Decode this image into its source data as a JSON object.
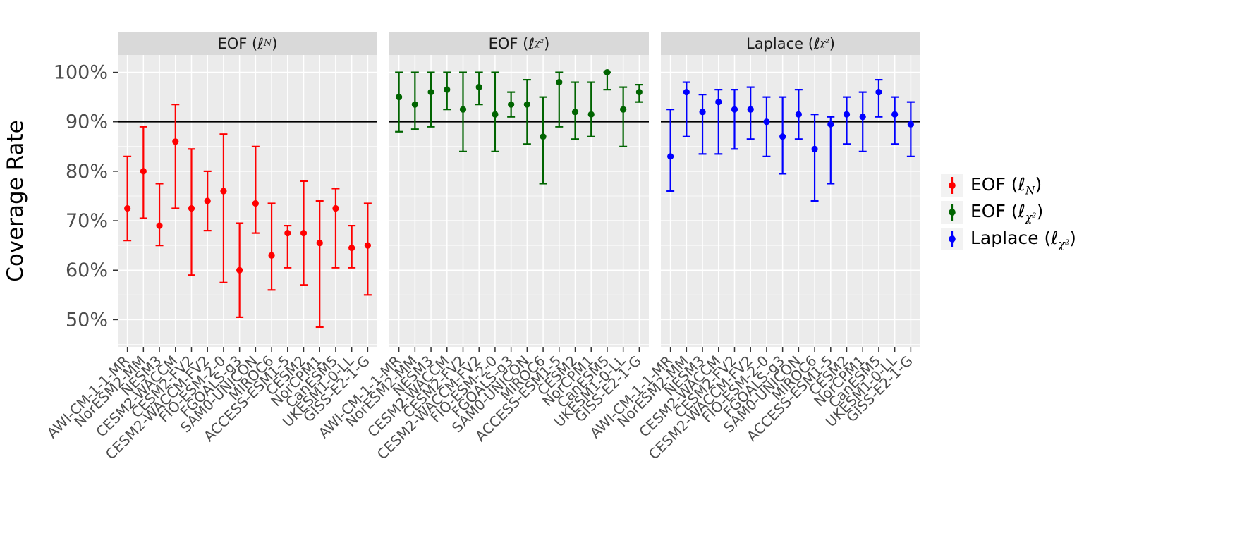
{
  "chart_data": {
    "type": "pointrange",
    "title": "",
    "xlabel": "",
    "ylabel": "Coverage Rate",
    "ylim": [
      44.5,
      103.5
    ],
    "y_ticks": [
      "50%",
      "60%",
      "70%",
      "80%",
      "90%",
      "100%"
    ],
    "y_tick_values": [
      50,
      60,
      70,
      80,
      90,
      100
    ],
    "y_minor_values": [
      45,
      55,
      65,
      75,
      85,
      95
    ],
    "reference_line": 90,
    "legend_position": "right",
    "grid": true,
    "categories": [
      "AWI-CM-1-1-MR",
      "NorESM2-MM",
      "NESM3",
      "CESM2-WACCM",
      "CESM2-FV2",
      "CESM2-WACCM-FV2",
      "FIO-ESM-2-0",
      "FGOALS-g3",
      "SAM0-UNICON",
      "MIROC6",
      "ACCESS-ESM1-5",
      "CESM2",
      "NorCPM1",
      "CanESM5",
      "UKESM1-0-LL",
      "GISS-E2-1-G"
    ],
    "panels": [
      {
        "label": {
          "prefix": "EOF (ℓ",
          "sub": "N",
          "suffix": ")"
        },
        "color": "#FF0000",
        "lo": [
          66,
          70.5,
          65,
          72.5,
          59,
          68,
          57.5,
          50.5,
          67.5,
          56,
          60.5,
          57,
          48.5,
          60.5,
          60.5,
          55
        ],
        "mid": [
          72.5,
          80,
          69,
          86,
          72.5,
          74,
          76,
          60,
          73.5,
          63,
          67.5,
          67.5,
          65.5,
          72.5,
          64.5,
          65
        ],
        "hi": [
          83,
          89,
          77.5,
          93.5,
          84.5,
          80,
          87.5,
          69.5,
          85,
          73.5,
          69,
          78,
          74,
          76.5,
          69,
          73.5
        ]
      },
      {
        "label": {
          "prefix": "EOF (ℓ",
          "sub": "χ²",
          "suffix": ")"
        },
        "color": "#006400",
        "lo": [
          88,
          88.5,
          89,
          92.5,
          84,
          93.5,
          84,
          91,
          85.5,
          77.5,
          89,
          86.5,
          87,
          96.5,
          85,
          94
        ],
        "mid": [
          95,
          93.5,
          96,
          96.5,
          92.5,
          97,
          91.5,
          93.5,
          93.5,
          87,
          98,
          92,
          91.5,
          100,
          92.5,
          96
        ],
        "hi": [
          100,
          100,
          100,
          100,
          100,
          100,
          100,
          96,
          98.5,
          95,
          100,
          98,
          98,
          100,
          97,
          97.5
        ]
      },
      {
        "label": {
          "prefix": "Laplace (ℓ",
          "sub": "χ²",
          "suffix": ")"
        },
        "color": "#0000FF",
        "lo": [
          76,
          87,
          83.5,
          83.5,
          84.5,
          86.5,
          83,
          79.5,
          86.5,
          74,
          77.5,
          85.5,
          84,
          91,
          85.5,
          83
        ],
        "mid": [
          83,
          96,
          92,
          94,
          92.5,
          92.5,
          90,
          87,
          91.5,
          84.5,
          89.5,
          91.5,
          91,
          96,
          91.5,
          89.5
        ],
        "hi": [
          92.5,
          98,
          95.5,
          96.5,
          96.5,
          97,
          95,
          95,
          96.5,
          91.5,
          91,
          95,
          96,
          98.5,
          95,
          94
        ]
      }
    ],
    "style": {
      "panel_bg": "#EBEBEB",
      "strip_bg": "#D9D9D9",
      "grid_color": "#FFFFFF",
      "reference_color": "#000000",
      "axis_text_color": "#4D4D4D",
      "tick_color": "#333333",
      "strip_text_color": "#1A1A1A",
      "legend_key_bg": "#F2F2F2",
      "y_title_color": "#000000"
    }
  }
}
